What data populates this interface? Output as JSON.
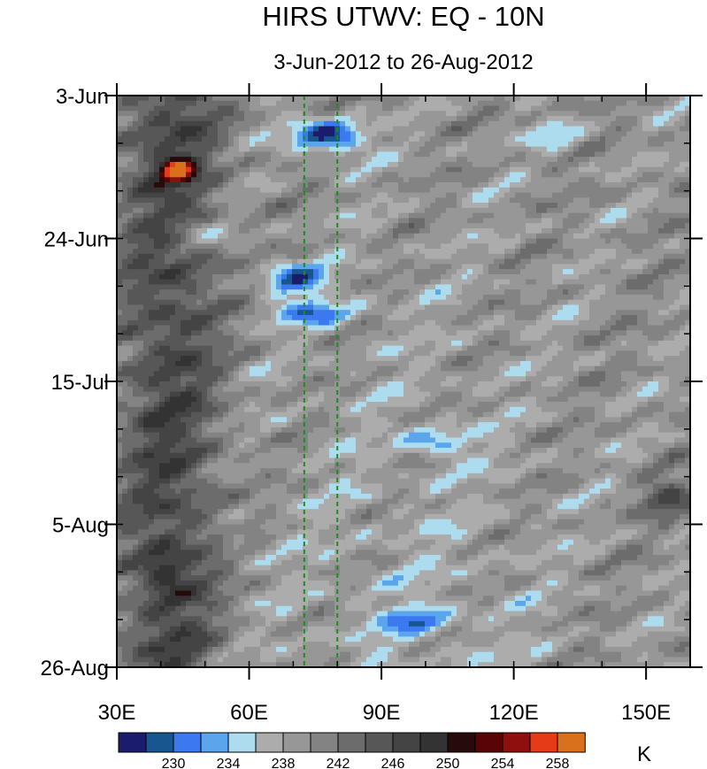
{
  "chart_data": {
    "type": "heatmap",
    "title": "HIRS UTWV: EQ - 10N",
    "subtitle": "3-Jun-2012 to 26-Aug-2012",
    "units": "K",
    "x": {
      "range": [
        30,
        160
      ],
      "ticks": [
        30,
        60,
        90,
        120,
        150
      ],
      "tick_labels": [
        "30E",
        "60E",
        "90E",
        "120E",
        "150E"
      ],
      "minor_step": 10
    },
    "y": {
      "range_day_of_year": [
        155,
        239
      ],
      "reversed": true,
      "ticks": [
        155,
        176,
        197,
        218,
        239
      ],
      "tick_labels": [
        "3-Jun",
        "24-Jun",
        "15-Jul",
        "5-Aug",
        "26-Aug"
      ],
      "minor_step_days": 7
    },
    "reference_lines": {
      "longitudes": [
        72.5,
        80
      ],
      "style": "dashed",
      "color": "#1e8c1e"
    },
    "colorbar": {
      "levels": [
        228,
        230,
        232,
        234,
        236,
        238,
        240,
        242,
        244,
        246,
        248,
        250,
        252,
        254,
        256,
        258
      ],
      "labels": [
        "230",
        "234",
        "238",
        "242",
        "246",
        "250",
        "254",
        "258"
      ],
      "label_values": [
        230,
        234,
        238,
        242,
        246,
        250,
        254,
        258
      ],
      "colors": [
        "#1c1c6c",
        "#17568f",
        "#3c78f0",
        "#5aa5ec",
        "#aedcef",
        "#acacac",
        "#979797",
        "#838383",
        "#6c6c6c",
        "#575757",
        "#444444",
        "#333333",
        "#270a0a",
        "#5a0505",
        "#8f0e0e",
        "#e63b19",
        "#d9701c"
      ]
    }
  }
}
